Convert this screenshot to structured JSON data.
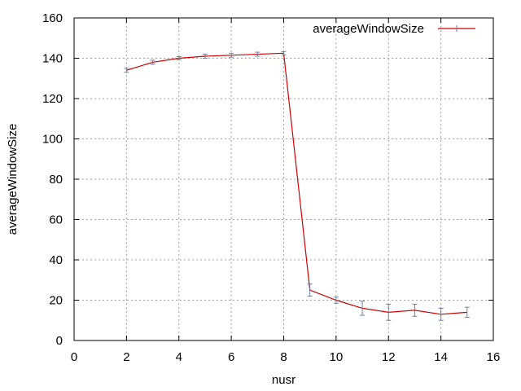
{
  "chart_data": {
    "type": "line",
    "title": "",
    "xlabel": "nusr",
    "ylabel": "averageWindowSize",
    "xlim": [
      0,
      16
    ],
    "ylim": [
      0,
      160
    ],
    "x_ticks": [
      "0",
      "2",
      "4",
      "6",
      "8",
      "10",
      "12",
      "14",
      "16"
    ],
    "y_ticks": [
      "0",
      "20",
      "40",
      "60",
      "80",
      "100",
      "120",
      "140",
      "160"
    ],
    "grid": true,
    "legend_position": "top-right",
    "series": [
      {
        "name": "averageWindowSize",
        "color": "#cc0000",
        "error_bar_color": "#6f7f9f",
        "x": [
          2,
          3,
          4,
          5,
          6,
          7,
          8,
          9,
          10,
          11,
          12,
          13,
          14,
          15
        ],
        "values": [
          134,
          138,
          140,
          141,
          141.5,
          142,
          142.5,
          25,
          20,
          16,
          14,
          15,
          13,
          14
        ],
        "errors": [
          1,
          1,
          0.8,
          1,
          1,
          1,
          0.8,
          3,
          1.5,
          3.5,
          4,
          3,
          3,
          2.5
        ]
      }
    ]
  }
}
